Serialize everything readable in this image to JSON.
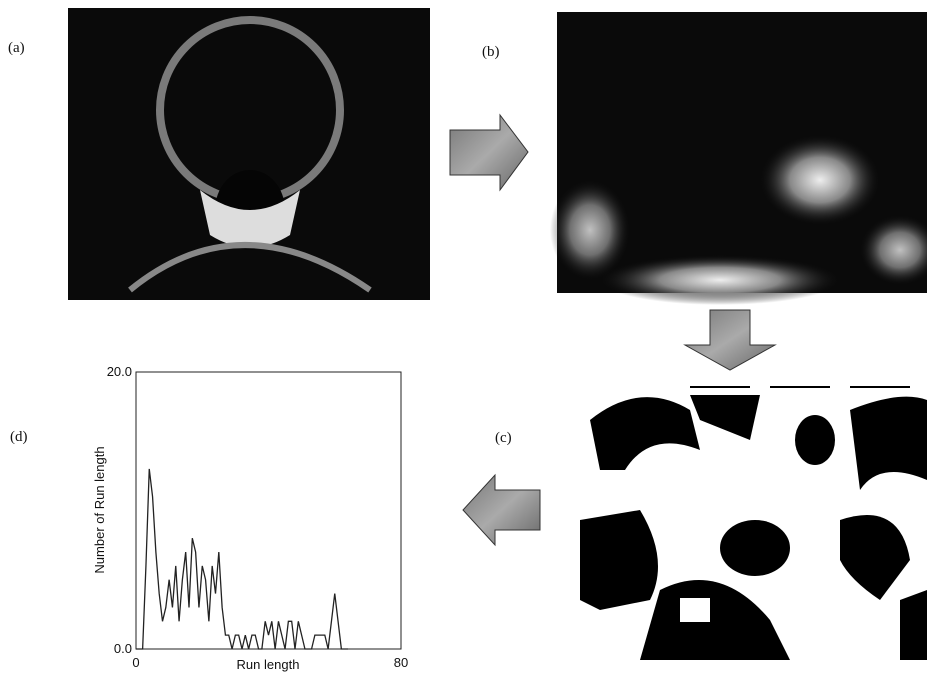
{
  "panels": [
    {
      "label": "(a)"
    },
    {
      "label": "(b)"
    },
    {
      "label": "(c)"
    },
    {
      "label": "(d)"
    }
  ],
  "chart_data": {
    "type": "line",
    "xlabel": "Run length",
    "ylabel": "Number of Run length",
    "x": [
      0,
      1,
      2,
      3,
      4,
      5,
      6,
      7,
      8,
      9,
      10,
      11,
      12,
      13,
      14,
      15,
      16,
      17,
      18,
      19,
      20,
      21,
      22,
      23,
      24,
      25,
      26,
      27,
      28,
      29,
      30,
      31,
      32,
      33,
      34,
      35,
      36,
      37,
      38,
      39,
      40,
      41,
      42,
      43,
      44,
      45,
      46,
      47,
      48,
      49,
      50,
      51,
      52,
      53,
      54,
      55,
      56,
      57,
      58,
      59,
      60,
      61,
      62,
      63,
      64
    ],
    "values": [
      0,
      0,
      0,
      6,
      13,
      11,
      7,
      4,
      2,
      3,
      5,
      3,
      6,
      2,
      5,
      7,
      3,
      8,
      7,
      3,
      6,
      5,
      2,
      6,
      4,
      7,
      3,
      1,
      1,
      0,
      1,
      1,
      0,
      1,
      0,
      1,
      1,
      0,
      0,
      2,
      1,
      2,
      0,
      2,
      1,
      0,
      2,
      2,
      0,
      2,
      1,
      0,
      0,
      0,
      1,
      1,
      1,
      1,
      0,
      2,
      4,
      2,
      0,
      0,
      0
    ],
    "color": "#222222",
    "xlim": [
      0,
      80
    ],
    "ylim": [
      0,
      20
    ],
    "xticks": [
      0,
      80
    ],
    "yticks": [
      {
        "value": 0,
        "label": "0.0"
      },
      {
        "value": 20,
        "label": "20.0"
      }
    ]
  }
}
